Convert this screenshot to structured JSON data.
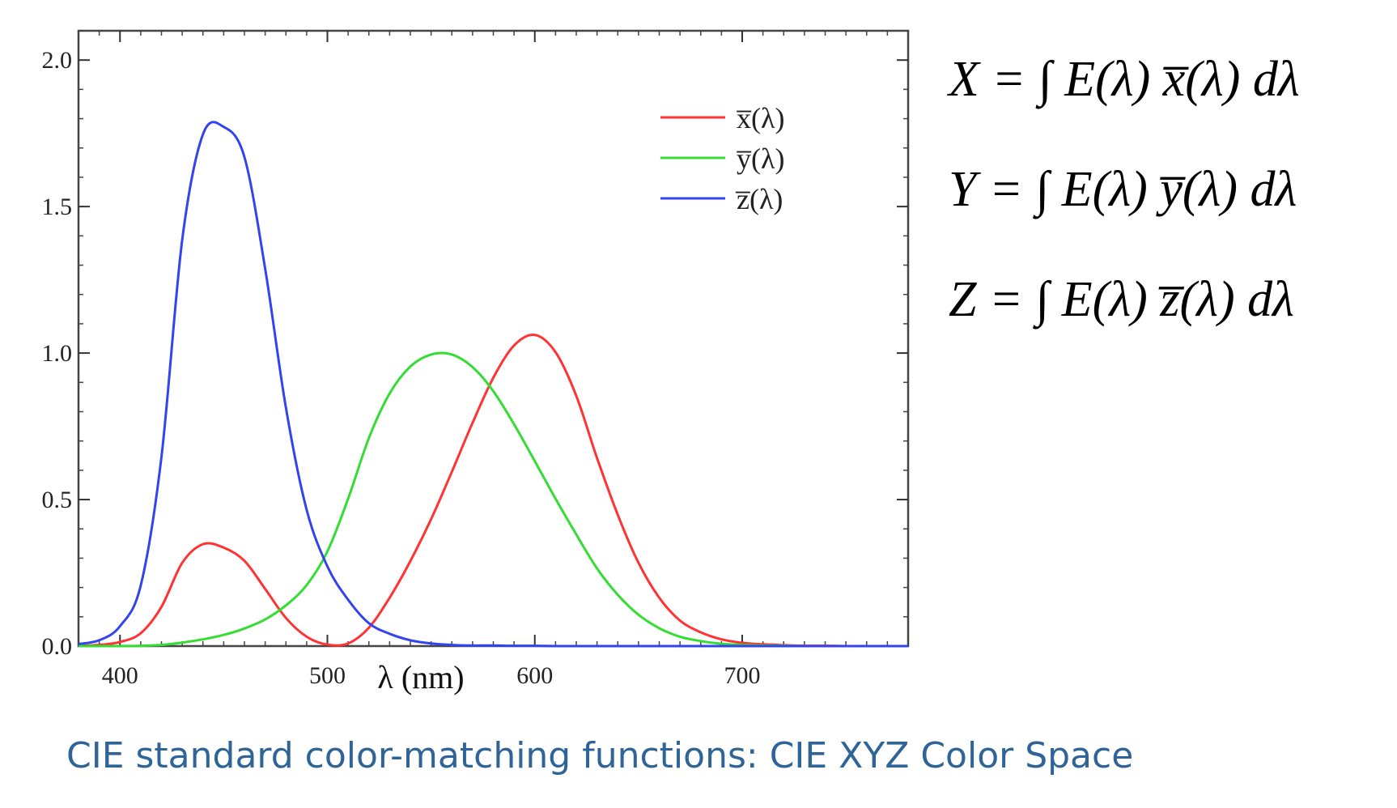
{
  "caption": "CIE standard color-matching functions: CIE XYZ Color Space",
  "equations": [
    "X = ∫ E(λ) x̅(λ) dλ",
    "Y = ∫ E(λ) y̅(λ) dλ",
    "Z = ∫ E(λ) z̅(λ) dλ"
  ],
  "chart_data": {
    "type": "line",
    "title": "",
    "xlabel": "λ (nm)",
    "ylabel": "",
    "xlim": [
      380,
      780
    ],
    "ylim": [
      0,
      2.1
    ],
    "xticks": [
      "400",
      "500",
      "600",
      "700"
    ],
    "xtick_values": [
      400,
      500,
      600,
      700
    ],
    "yticks": [
      "0.0",
      "0.5",
      "1.0",
      "1.5",
      "2.0"
    ],
    "ytick_values": [
      0,
      0.5,
      1.0,
      1.5,
      2.0
    ],
    "grid": false,
    "legend": "top-right",
    "x": [
      380,
      390,
      400,
      410,
      420,
      430,
      440,
      450,
      460,
      470,
      480,
      490,
      500,
      510,
      520,
      530,
      540,
      550,
      560,
      570,
      580,
      590,
      600,
      610,
      620,
      630,
      640,
      650,
      660,
      670,
      680,
      690,
      700,
      710,
      720,
      730,
      740,
      750,
      760,
      770,
      780
    ],
    "series": [
      {
        "name": "x̅(λ)",
        "color": "#ff3333",
        "values": [
          0.001,
          0.004,
          0.014,
          0.044,
          0.134,
          0.284,
          0.348,
          0.336,
          0.291,
          0.195,
          0.096,
          0.032,
          0.005,
          0.009,
          0.063,
          0.165,
          0.29,
          0.433,
          0.595,
          0.762,
          0.916,
          1.026,
          1.062,
          1.003,
          0.854,
          0.642,
          0.448,
          0.284,
          0.165,
          0.087,
          0.047,
          0.023,
          0.011,
          0.006,
          0.003,
          0.001,
          0.001,
          0.0,
          0.0,
          0.0,
          0.0
        ]
      },
      {
        "name": "y̅(λ)",
        "color": "#33dd33",
        "values": [
          0.0,
          0.0,
          0.0,
          0.001,
          0.004,
          0.012,
          0.023,
          0.038,
          0.06,
          0.091,
          0.139,
          0.208,
          0.323,
          0.503,
          0.71,
          0.862,
          0.954,
          0.995,
          0.995,
          0.952,
          0.87,
          0.757,
          0.631,
          0.503,
          0.381,
          0.265,
          0.175,
          0.107,
          0.061,
          0.032,
          0.017,
          0.008,
          0.004,
          0.002,
          0.001,
          0.0,
          0.0,
          0.0,
          0.0,
          0.0,
          0.0
        ]
      },
      {
        "name": "z̅(λ)",
        "color": "#3344ee",
        "values": [
          0.007,
          0.02,
          0.068,
          0.207,
          0.646,
          1.386,
          1.747,
          1.772,
          1.669,
          1.288,
          0.813,
          0.465,
          0.272,
          0.158,
          0.078,
          0.042,
          0.02,
          0.009,
          0.004,
          0.002,
          0.002,
          0.001,
          0.001,
          0.0,
          0.0,
          0.0,
          0.0,
          0.0,
          0.0,
          0.0,
          0.0,
          0.0,
          0.0,
          0.0,
          0.0,
          0.0,
          0.0,
          0.0,
          0.0,
          0.0,
          0.0
        ]
      }
    ]
  }
}
